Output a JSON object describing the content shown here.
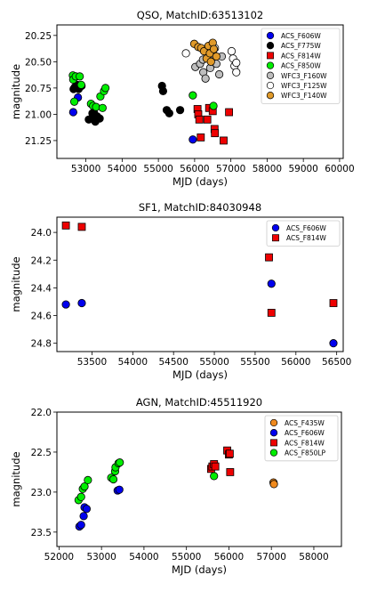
{
  "chart_data": [
    {
      "type": "scatter",
      "title": "QSO, MatchID:63513102",
      "xlabel": "MJD (days)",
      "ylabel": "magnitude",
      "xlim": [
        52200,
        60100
      ],
      "ylim": [
        21.42,
        20.15
      ],
      "y_inverted": true,
      "xticks": [
        53000,
        54000,
        55000,
        56000,
        57000,
        58000,
        59000,
        60000
      ],
      "yticks": [
        20.25,
        20.5,
        20.75,
        21.0,
        21.25
      ],
      "yticklabels": [
        "20.25",
        "20.50",
        "20.75",
        "21.00",
        "21.25"
      ],
      "legend_position": "top-right",
      "series": [
        {
          "name": "ACS_F606W",
          "color": "#0000ee",
          "marker": "circle",
          "points": [
            [
              52650,
              20.98
            ],
            [
              52780,
              20.84
            ],
            [
              55950,
              21.24
            ]
          ]
        },
        {
          "name": "ACS_F775W",
          "color": "#000000",
          "marker": "circle",
          "points": [
            [
              52660,
              20.76
            ],
            [
              52700,
              20.74
            ],
            [
              52760,
              20.72
            ],
            [
              52800,
              20.76
            ],
            [
              52880,
              20.73
            ],
            [
              53080,
              21.05
            ],
            [
              53160,
              21.04
            ],
            [
              53180,
              20.99
            ],
            [
              53220,
              20.98
            ],
            [
              53260,
              21.07
            ],
            [
              53310,
              21.02
            ],
            [
              53380,
              21.04
            ],
            [
              55100,
              20.73
            ],
            [
              55130,
              20.78
            ],
            [
              55230,
              20.96
            ],
            [
              55300,
              20.99
            ],
            [
              55600,
              20.96
            ]
          ]
        },
        {
          "name": "ACS_F814W",
          "color": "#ee0000",
          "marker": "square",
          "points": [
            [
              56080,
              20.95
            ],
            [
              56100,
              21.0
            ],
            [
              56130,
              21.05
            ],
            [
              56170,
              21.22
            ],
            [
              56350,
              21.05
            ],
            [
              56400,
              20.94
            ],
            [
              56500,
              20.97
            ],
            [
              56550,
              21.14
            ],
            [
              56560,
              21.18
            ],
            [
              56800,
              21.25
            ],
            [
              56950,
              20.98
            ]
          ]
        },
        {
          "name": "ACS_F850W",
          "color": "#00ee00",
          "marker": "circle",
          "points": [
            [
              52640,
              20.63
            ],
            [
              52650,
              20.67
            ],
            [
              52680,
              20.88
            ],
            [
              52720,
              20.64
            ],
            [
              52830,
              20.64
            ],
            [
              52870,
              20.72
            ],
            [
              53140,
              20.9
            ],
            [
              53200,
              20.92
            ],
            [
              53280,
              20.93
            ],
            [
              53400,
              20.83
            ],
            [
              53460,
              20.94
            ],
            [
              53500,
              20.78
            ],
            [
              53540,
              20.75
            ],
            [
              55950,
              20.82
            ],
            [
              56520,
              20.92
            ]
          ]
        },
        {
          "name": "WFC3_F160W",
          "color": "#bebebe",
          "marker": "circle",
          "points": [
            [
              56020,
              20.55
            ],
            [
              56150,
              20.52
            ],
            [
              56230,
              20.48
            ],
            [
              56240,
              20.6
            ],
            [
              56300,
              20.66
            ],
            [
              56430,
              20.56
            ],
            [
              56600,
              20.52
            ],
            [
              56680,
              20.62
            ],
            [
              56750,
              20.45
            ]
          ]
        },
        {
          "name": "WFC3_F125W",
          "color": "#ffffff",
          "marker": "circle",
          "points": [
            [
              55760,
              20.42
            ],
            [
              56520,
              20.43
            ],
            [
              56560,
              20.37
            ],
            [
              57020,
              20.4
            ],
            [
              57060,
              20.47
            ],
            [
              57100,
              20.54
            ],
            [
              57150,
              20.51
            ],
            [
              57150,
              20.6
            ]
          ]
        },
        {
          "name": "WFC3_F140W",
          "color": "#e09a2a",
          "marker": "circle",
          "points": [
            [
              55990,
              20.33
            ],
            [
              56100,
              20.36
            ],
            [
              56180,
              20.37
            ],
            [
              56260,
              20.4
            ],
            [
              56330,
              20.47
            ],
            [
              56380,
              20.35
            ],
            [
              56420,
              20.42
            ],
            [
              56450,
              20.5
            ],
            [
              56500,
              20.32
            ],
            [
              56530,
              20.38
            ],
            [
              56600,
              20.45
            ]
          ]
        }
      ]
    },
    {
      "type": "scatter",
      "title": "SF1, MatchID:84030948",
      "xlabel": "MJD (days)",
      "ylabel": "magnitude",
      "xlim": [
        53070,
        56580
      ],
      "ylim": [
        24.86,
        23.89
      ],
      "y_inverted": true,
      "xticks": [
        53500,
        54000,
        54500,
        55000,
        55500,
        56000,
        56500
      ],
      "yticks": [
        24.0,
        24.2,
        24.4,
        24.6,
        24.8
      ],
      "yticklabels": [
        "24.0",
        "24.2",
        "24.4",
        "24.6",
        "24.8"
      ],
      "legend_position": "top-right",
      "series": [
        {
          "name": "ACS_F606W",
          "color": "#0000ee",
          "marker": "circle",
          "points": [
            [
              53180,
              24.52
            ],
            [
              53375,
              24.51
            ],
            [
              55700,
              24.37
            ],
            [
              56460,
              24.8
            ]
          ]
        },
        {
          "name": "ACS_F814W",
          "color": "#ee0000",
          "marker": "square",
          "points": [
            [
              53180,
              23.95
            ],
            [
              53375,
              23.96
            ],
            [
              55670,
              24.18
            ],
            [
              55700,
              24.58
            ],
            [
              56460,
              24.51
            ]
          ]
        }
      ]
    },
    {
      "type": "scatter",
      "title": "AGN, MatchID:45511920",
      "xlabel": "MJD (days)",
      "ylabel": "magnitude",
      "xlim": [
        51950,
        58650
      ],
      "ylim": [
        23.68,
        22.0
      ],
      "y_inverted": true,
      "xticks": [
        52000,
        53000,
        54000,
        55000,
        56000,
        57000,
        58000
      ],
      "yticks": [
        22.0,
        22.5,
        23.0,
        23.5
      ],
      "yticklabels": [
        "22.0",
        "22.5",
        "23.0",
        "23.5"
      ],
      "legend_position": "top-right",
      "series": [
        {
          "name": "ACS_F435W",
          "color": "#f08a1e",
          "marker": "circle",
          "points": [
            [
              55650,
              22.68
            ],
            [
              57050,
              22.88
            ],
            [
              57060,
              22.9
            ]
          ]
        },
        {
          "name": "ACS_F606W",
          "color": "#0000ee",
          "marker": "circle",
          "points": [
            [
              52480,
              23.43
            ],
            [
              52520,
              23.41
            ],
            [
              52580,
              23.3
            ],
            [
              52600,
              23.19
            ],
            [
              52650,
              23.21
            ],
            [
              53380,
              22.98
            ],
            [
              53420,
              22.97
            ]
          ]
        },
        {
          "name": "ACS_F850LP",
          "color": "#00ee00",
          "marker": "circle",
          "points": [
            [
              52460,
              23.1
            ],
            [
              52520,
              23.06
            ],
            [
              52560,
              22.96
            ],
            [
              52600,
              22.93
            ],
            [
              52680,
              22.85
            ],
            [
              53230,
              22.82
            ],
            [
              53280,
              22.84
            ],
            [
              53320,
              22.74
            ],
            [
              53330,
              22.69
            ],
            [
              53400,
              22.64
            ],
            [
              53430,
              22.63
            ],
            [
              55650,
              22.8
            ]
          ]
        },
        {
          "name": "ACS_F814W",
          "color": "#ee0000",
          "marker": "square",
          "points": [
            [
              55580,
              22.71
            ],
            [
              55610,
              22.68
            ],
            [
              55650,
              22.65
            ],
            [
              55680,
              22.68
            ],
            [
              55960,
              22.48
            ],
            [
              56000,
              22.53
            ],
            [
              56020,
              22.52
            ],
            [
              56030,
              22.75
            ]
          ]
        }
      ],
      "legend_order": [
        "ACS_F435W",
        "ACS_F606W",
        "ACS_F814W",
        "ACS_F850LP"
      ]
    }
  ]
}
